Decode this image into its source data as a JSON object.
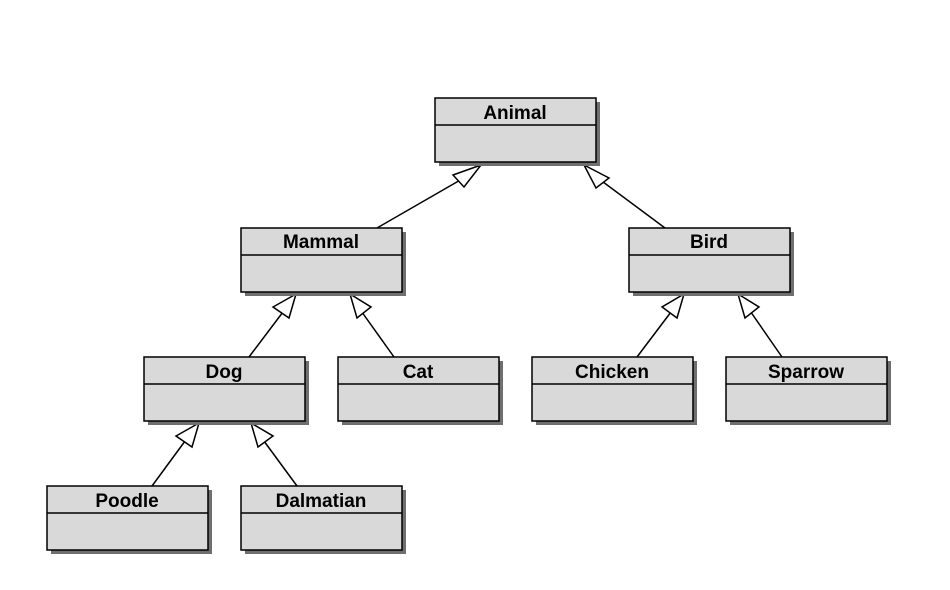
{
  "diagram": {
    "type": "uml-class-inheritance",
    "style": {
      "box_fill": "#d9d9d9",
      "shadow": "#6f6f6f",
      "stroke": "#000000",
      "arrow_fill": "#ffffff"
    },
    "classes": [
      {
        "id": "animal",
        "name": "Animal"
      },
      {
        "id": "mammal",
        "name": "Mammal"
      },
      {
        "id": "bird",
        "name": "Bird"
      },
      {
        "id": "dog",
        "name": "Dog"
      },
      {
        "id": "cat",
        "name": "Cat"
      },
      {
        "id": "chicken",
        "name": "Chicken"
      },
      {
        "id": "sparrow",
        "name": "Sparrow"
      },
      {
        "id": "poodle",
        "name": "Poodle"
      },
      {
        "id": "dalmatian",
        "name": "Dalmatian"
      }
    ],
    "generalizations": [
      {
        "child": "mammal",
        "parent": "animal"
      },
      {
        "child": "bird",
        "parent": "animal"
      },
      {
        "child": "dog",
        "parent": "mammal"
      },
      {
        "child": "cat",
        "parent": "mammal"
      },
      {
        "child": "chicken",
        "parent": "bird"
      },
      {
        "child": "sparrow",
        "parent": "bird"
      },
      {
        "child": "poodle",
        "parent": "dog"
      },
      {
        "child": "dalmatian",
        "parent": "dog"
      }
    ]
  }
}
